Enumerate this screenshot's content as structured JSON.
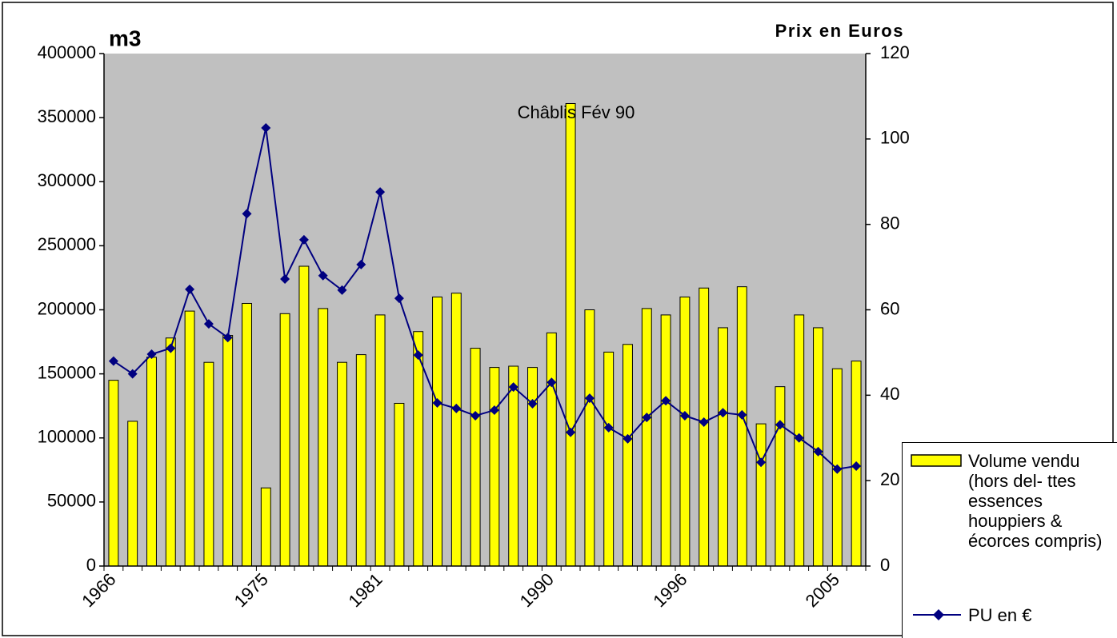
{
  "chart_data": {
    "type": "bar_line",
    "y_label": "m3",
    "y2_label": "Prix en Euros",
    "annotation": "Châblis Fév 90",
    "categories": [
      "1966",
      null,
      null,
      null,
      null,
      null,
      null,
      null,
      "1975",
      null,
      null,
      null,
      null,
      null,
      "1981",
      null,
      null,
      null,
      null,
      null,
      null,
      null,
      null,
      "1990",
      null,
      null,
      null,
      null,
      null,
      null,
      "1996",
      null,
      null,
      null,
      null,
      null,
      null,
      null,
      "2005",
      null
    ],
    "series": [
      {
        "name": "Volume vendu (hors del- ttes essences houppiers & écorces compris)",
        "color": "#ffff00",
        "kind": "bar",
        "values": [
          145000,
          113000,
          163000,
          178000,
          199000,
          159000,
          180000,
          205000,
          61000,
          197000,
          234000,
          201000,
          159000,
          165000,
          196000,
          127000,
          183000,
          210000,
          213000,
          170000,
          155000,
          156000,
          155000,
          182000,
          361000,
          200000,
          167000,
          173000,
          201000,
          196000,
          210000,
          217000,
          186000,
          218000,
          111000,
          140000,
          196000,
          186000,
          154000,
          160000
        ]
      },
      {
        "name": "PU en €",
        "color": "#000080",
        "kind": "line",
        "axis": "y2",
        "values": [
          48,
          45,
          49.6,
          51,
          64.8,
          56.7,
          53.5,
          82.5,
          102.6,
          67.2,
          76.4,
          68,
          64.6,
          70.6,
          87.6,
          62.7,
          49.4,
          38.2,
          36.9,
          35.2,
          36.5,
          41.9,
          38,
          43,
          31.3,
          39.3,
          32.4,
          29.8,
          34.8,
          38.7,
          35.2,
          33.7,
          35.9,
          35.4,
          24.3,
          33.1,
          30,
          26.8,
          22.7,
          23.4
        ]
      }
    ],
    "ylim": [
      0,
      400000
    ],
    "yticks": [
      0,
      50000,
      100000,
      150000,
      200000,
      250000,
      300000,
      350000,
      400000
    ],
    "y2lim": [
      0,
      120
    ],
    "y2ticks": [
      0,
      20,
      40,
      60,
      80,
      100,
      120
    ],
    "grid": false,
    "plot_background": "#c0c0c0"
  }
}
